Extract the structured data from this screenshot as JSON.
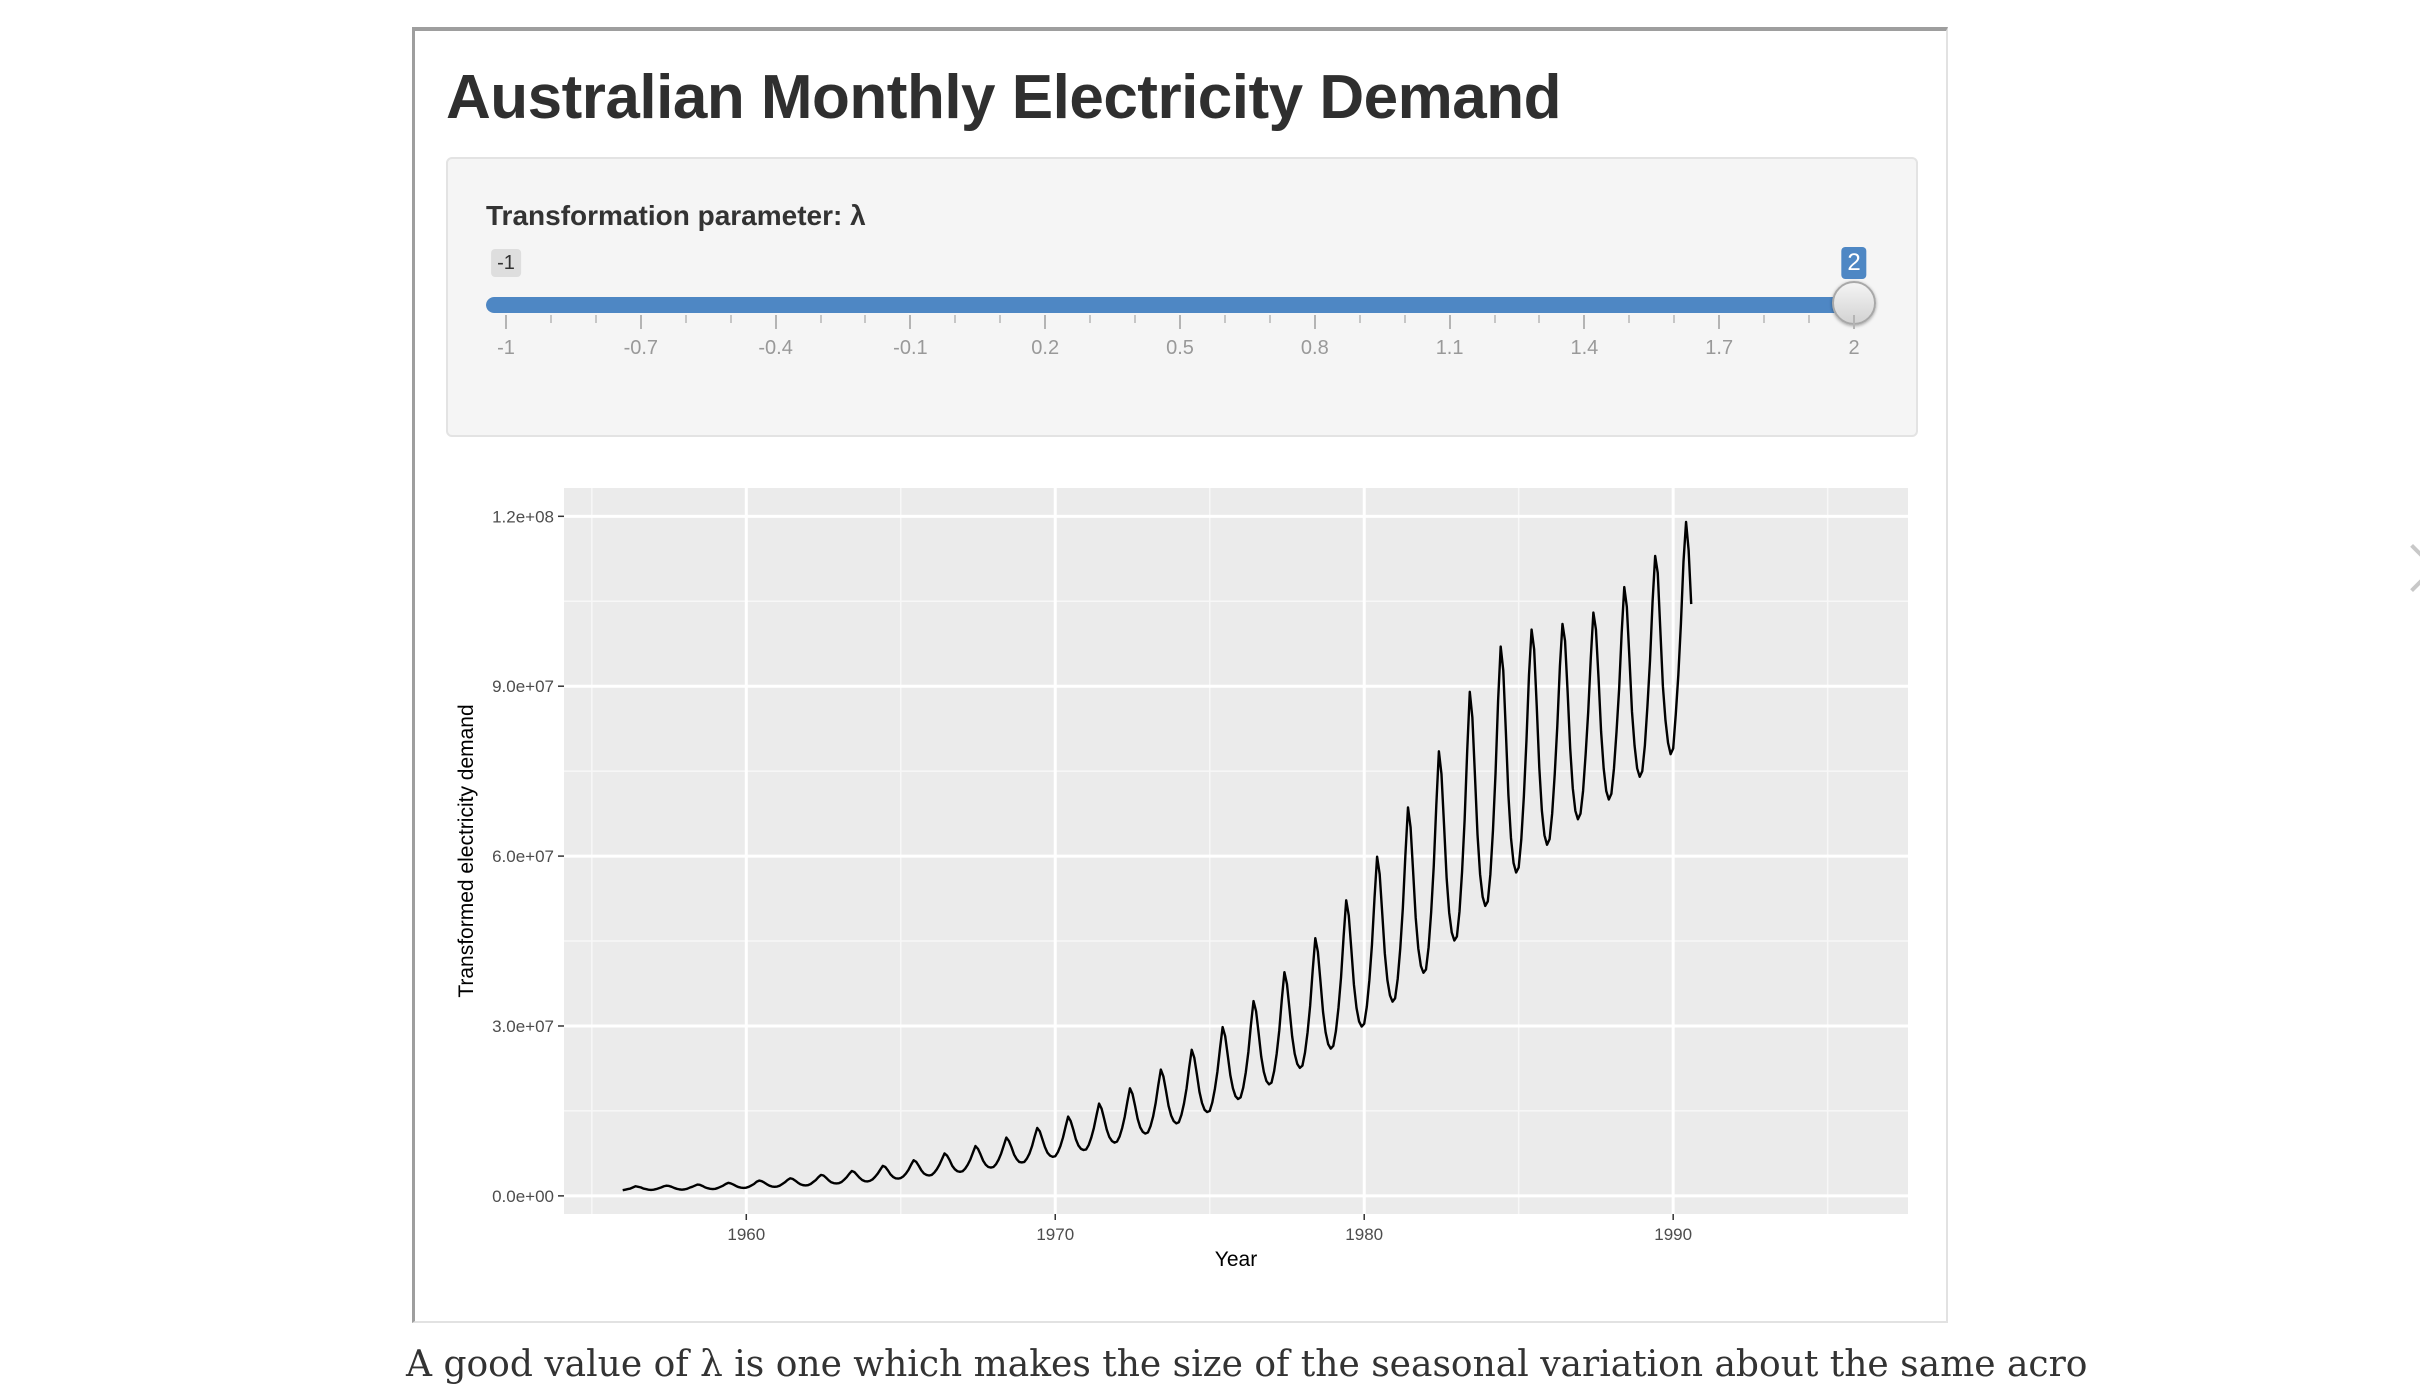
{
  "app": {
    "title": "Australian Monthly Electricity Demand",
    "bottom_text": "A good value of λ is one which makes the size of the seasonal variation about the same acro"
  },
  "slider": {
    "label": "Transformation parameter: λ",
    "min": -1,
    "max": 2,
    "value": 2,
    "min_badge": "-1",
    "value_badge": "2",
    "tick_labels": [
      "-1",
      "-0.7",
      "-0.4",
      "-0.1",
      "0.2",
      "0.5",
      "0.8",
      "1.1",
      "1.4",
      "1.7",
      "2"
    ],
    "fill_color": "#4e87c4"
  },
  "chart_data": {
    "type": "line",
    "xlabel": "Year",
    "ylabel": "Transformed electricity demand",
    "xlim": [
      1954.1,
      1997.6
    ],
    "ylim": [
      -3200000.0,
      125000000.0
    ],
    "x_ticks": [
      1960,
      1970,
      1980,
      1990
    ],
    "x_tick_labels": [
      "1960",
      "1970",
      "1980",
      "1990"
    ],
    "y_ticks": [
      0,
      30000000,
      60000000,
      90000000,
      120000000
    ],
    "y_tick_labels": [
      "0.0e+00",
      "3.0e+07",
      "6.0e+07",
      "9.0e+07",
      "1.2e+08"
    ],
    "grid": true,
    "background": "#ebebeb",
    "line_color": "#000000",
    "series": [
      {
        "start": 1956.0,
        "frequency": 12,
        "values": [
          1000000,
          1100000,
          1200000,
          1300000,
          1500000,
          1700000,
          1600000,
          1500000,
          1300000,
          1200000,
          1100000,
          1050000,
          1100000,
          1200000,
          1350000,
          1500000,
          1700000,
          1800000,
          1750000,
          1600000,
          1400000,
          1250000,
          1150000,
          1100000,
          1150000,
          1250000,
          1450000,
          1600000,
          1800000,
          2000000,
          1950000,
          1750000,
          1500000,
          1350000,
          1250000,
          1200000,
          1250000,
          1400000,
          1600000,
          1800000,
          2100000,
          2300000,
          2200000,
          2000000,
          1750000,
          1550000,
          1450000,
          1400000,
          1450000,
          1600000,
          1850000,
          2100000,
          2500000,
          2700000,
          2600000,
          2350000,
          2050000,
          1800000,
          1650000,
          1600000,
          1650000,
          1800000,
          2100000,
          2400000,
          2800000,
          3100000,
          3000000,
          2700000,
          2350000,
          2050000,
          1900000,
          1850000,
          1900000,
          2100000,
          2450000,
          2800000,
          3300000,
          3700000,
          3600000,
          3200000,
          2750000,
          2400000,
          2250000,
          2200000,
          2250000,
          2450000,
          2850000,
          3300000,
          3900000,
          4400000,
          4200000,
          3700000,
          3200000,
          2800000,
          2600000,
          2550000,
          2650000,
          2900000,
          3350000,
          3900000,
          4600000,
          5300000,
          5100000,
          4500000,
          3800000,
          3350000,
          3100000,
          3050000,
          3150000,
          3450000,
          3950000,
          4600000,
          5500000,
          6300000,
          6000000,
          5300000,
          4500000,
          3950000,
          3700000,
          3600000,
          3700000,
          4100000,
          4700000,
          5500000,
          6500000,
          7500000,
          7100000,
          6300000,
          5300000,
          4700000,
          4350000,
          4250000,
          4350000,
          4800000,
          5500000,
          6400000,
          7600000,
          8800000,
          8300000,
          7300000,
          6200000,
          5500000,
          5100000,
          5000000,
          5100000,
          5600000,
          6400000,
          7500000,
          8900000,
          10300000,
          9700000,
          8600000,
          7300000,
          6500000,
          6000000,
          5900000,
          6000000,
          6600000,
          7500000,
          8800000,
          10500000,
          12000000,
          11400000,
          10000000,
          8600000,
          7600000,
          7100000,
          6900000,
          7000000,
          7700000,
          8800000,
          10300000,
          12200000,
          14000000,
          13200000,
          11700000,
          10000000,
          8900000,
          8300000,
          8100000,
          8200000,
          9000000,
          10300000,
          12000000,
          14200000,
          16300000,
          15400000,
          13600000,
          11700000,
          10400000,
          9700000,
          9400000,
          9600000,
          10500000,
          12000000,
          14000000,
          16600000,
          19000000,
          18000000,
          15900000,
          13600000,
          12100000,
          11300000,
          11000000,
          11200000,
          12300000,
          14000000,
          16400000,
          19500000,
          22300000,
          21100000,
          18600000,
          15900000,
          14200000,
          13200000,
          12800000,
          13000000,
          14300000,
          16300000,
          19000000,
          22600000,
          25800000,
          24400000,
          21500000,
          18400000,
          16400000,
          15200000,
          14800000,
          15000000,
          16500000,
          18900000,
          22000000,
          26100000,
          29800000,
          28200000,
          24800000,
          21300000,
          19000000,
          17600000,
          17100000,
          17400000,
          19100000,
          21800000,
          25400000,
          30200000,
          34400000,
          32600000,
          28700000,
          24600000,
          21900000,
          20300000,
          19700000,
          20000000,
          22000000,
          25100000,
          29200000,
          34700000,
          39500000,
          37400000,
          32900000,
          28200000,
          25100000,
          23300000,
          22600000,
          23000000,
          25300000,
          28900000,
          33600000,
          39900000,
          45500000,
          43100000,
          37900000,
          32500000,
          28900000,
          26800000,
          26000000,
          26500000,
          29100000,
          33200000,
          38600000,
          45800000,
          52200000,
          49500000,
          43500000,
          37300000,
          33200000,
          30800000,
          29900000,
          30400000,
          33400000,
          38100000,
          44300000,
          52600000,
          59900000,
          56800000,
          49900000,
          42800000,
          38100000,
          35400000,
          34300000,
          34900000,
          38300000,
          43700000,
          50800000,
          60300000,
          68600000,
          65100000,
          57200000,
          49100000,
          43700000,
          40600000,
          39400000,
          40000000,
          43900000,
          50100000,
          58200000,
          69000000,
          78500000,
          74500000,
          65500000,
          56200000,
          50000000,
          46500000,
          45100000,
          45800000,
          50200000,
          57200000,
          66400000,
          78600000,
          89000000,
          84500000,
          74300000,
          63800000,
          56800000,
          52800000,
          51200000,
          52000000,
          56800000,
          64500000,
          74600000,
          87500000,
          97000000,
          92800000,
          82100000,
          70800000,
          63200000,
          58800000,
          57100000,
          58000000,
          62900000,
          70500000,
          80300000,
          92000000,
          100000000,
          96500000,
          86500000,
          75600000,
          68000000,
          63700000,
          62000000,
          63000000,
          67500000,
          74500000,
          83000000,
          93500000,
          101000000,
          98000000,
          89000000,
          79000000,
          72000000,
          68000000,
          66500000,
          67500000,
          71500000,
          78000000,
          85500000,
          95000000,
          103000000,
          100000000,
          91500000,
          82000000,
          75500000,
          71500000,
          70000000,
          71000000,
          75500000,
          82000000,
          89500000,
          99500000,
          107500000,
          104000000,
          95000000,
          85500000,
          79500000,
          75500000,
          74000000,
          75000000,
          79500000,
          86500000,
          94500000,
          105000000,
          113000000,
          110000000,
          100000000,
          90000000,
          84000000,
          80000000,
          78000000,
          79000000,
          85000000,
          92000000,
          101000000,
          112000000,
          119000000,
          114000000,
          104500000
        ]
      }
    ]
  }
}
